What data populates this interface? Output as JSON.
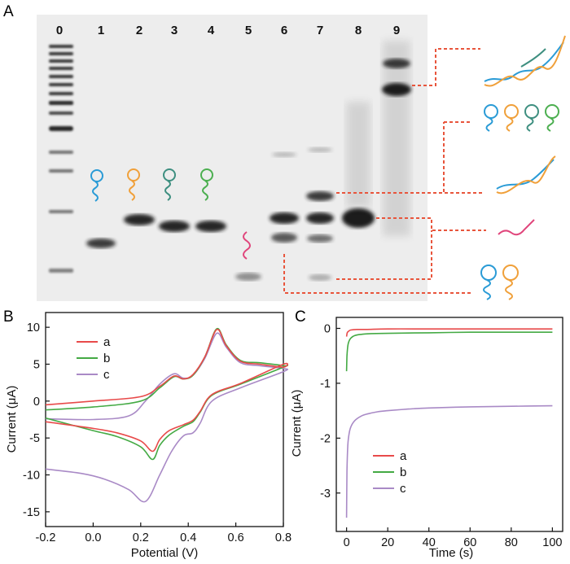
{
  "panels": {
    "A": {
      "letter": "A",
      "lane_numbers": [
        "0",
        "1",
        "2",
        "3",
        "4",
        "5",
        "6",
        "7",
        "8",
        "9"
      ],
      "colors": {
        "leader_line": "#e8553c",
        "blue": "#2a9bd6",
        "orange": "#f0a03a",
        "green": "#4caf50",
        "teal": "#3e8f80",
        "magenta": "#e0457b"
      }
    },
    "B": {
      "letter": "B",
      "chart_data": {
        "type": "line",
        "xlabel": "Potential (V)",
        "ylabel": "Current (μA)",
        "xlim": [
          -0.2,
          0.8
        ],
        "ylim": [
          -17,
          12
        ],
        "xticks": [
          "-0.2",
          "0.0",
          "0.2",
          "0.4",
          "0.6",
          "0.8"
        ],
        "yticks": [
          "10",
          "5",
          "0",
          "-5",
          "-10",
          "-15"
        ],
        "grid": false,
        "legend_position": "top-left",
        "series": [
          {
            "name": "a",
            "color": "#e84a4a",
            "upper": [
              [
                -0.2,
                -0.5
              ],
              [
                0.0,
                0.0
              ],
              [
                0.2,
                0.6
              ],
              [
                0.28,
                2.0
              ],
              [
                0.34,
                3.4
              ],
              [
                0.38,
                3.0
              ],
              [
                0.42,
                3.6
              ],
              [
                0.47,
                6.0
              ],
              [
                0.52,
                9.7
              ],
              [
                0.56,
                7.5
              ],
              [
                0.62,
                5.4
              ],
              [
                0.7,
                5.0
              ],
              [
                0.8,
                4.6
              ]
            ],
            "lower": [
              [
                0.8,
                5.0
              ],
              [
                0.62,
                2.4
              ],
              [
                0.5,
                0.9
              ],
              [
                0.45,
                -1.4
              ],
              [
                0.42,
                -2.6
              ],
              [
                0.38,
                -3.2
              ],
              [
                0.32,
                -4.0
              ],
              [
                0.28,
                -5.2
              ],
              [
                0.25,
                -6.8
              ],
              [
                0.2,
                -5.4
              ],
              [
                0.1,
                -4.3
              ],
              [
                0.0,
                -3.7
              ],
              [
                -0.2,
                -2.8
              ]
            ]
          },
          {
            "name": "b",
            "color": "#44aa44",
            "upper": [
              [
                -0.2,
                -1.2
              ],
              [
                0.0,
                -0.8
              ],
              [
                0.2,
                0.0
              ],
              [
                0.28,
                1.8
              ],
              [
                0.34,
                3.3
              ],
              [
                0.38,
                3.0
              ],
              [
                0.42,
                3.5
              ],
              [
                0.47,
                6.0
              ],
              [
                0.52,
                9.8
              ],
              [
                0.56,
                7.6
              ],
              [
                0.62,
                5.5
              ],
              [
                0.7,
                5.2
              ],
              [
                0.8,
                4.8
              ]
            ],
            "lower": [
              [
                0.8,
                4.6
              ],
              [
                0.62,
                2.3
              ],
              [
                0.5,
                0.8
              ],
              [
                0.45,
                -1.5
              ],
              [
                0.42,
                -2.8
              ],
              [
                0.38,
                -3.4
              ],
              [
                0.32,
                -4.6
              ],
              [
                0.28,
                -6.0
              ],
              [
                0.25,
                -7.9
              ],
              [
                0.2,
                -6.2
              ],
              [
                0.1,
                -4.8
              ],
              [
                0.0,
                -4.0
              ],
              [
                -0.2,
                -2.3
              ]
            ]
          },
          {
            "name": "c",
            "color": "#a98ac6",
            "upper": [
              [
                -0.2,
                -2.4
              ],
              [
                0.0,
                -2.5
              ],
              [
                0.15,
                -2.0
              ],
              [
                0.22,
                0.0
              ],
              [
                0.28,
                2.3
              ],
              [
                0.34,
                3.7
              ],
              [
                0.38,
                3.1
              ],
              [
                0.42,
                3.5
              ],
              [
                0.47,
                5.8
              ],
              [
                0.52,
                9.2
              ],
              [
                0.56,
                7.3
              ],
              [
                0.62,
                5.2
              ],
              [
                0.7,
                4.8
              ],
              [
                0.8,
                4.4
              ]
            ],
            "lower": [
              [
                0.8,
                4.0
              ],
              [
                0.62,
                1.8
              ],
              [
                0.5,
                0.0
              ],
              [
                0.45,
                -3.0
              ],
              [
                0.42,
                -4.3
              ],
              [
                0.38,
                -4.7
              ],
              [
                0.33,
                -6.8
              ],
              [
                0.28,
                -10.0
              ],
              [
                0.22,
                -13.6
              ],
              [
                0.15,
                -12.0
              ],
              [
                0.05,
                -10.6
              ],
              [
                -0.05,
                -9.8
              ],
              [
                -0.2,
                -9.2
              ]
            ]
          }
        ],
        "legend": [
          "a",
          "b",
          "c"
        ]
      }
    },
    "C": {
      "letter": "C",
      "chart_data": {
        "type": "line",
        "xlabel": "Time (s)",
        "ylabel": "Current (μA)",
        "xlim": [
          -5,
          105
        ],
        "ylim": [
          -3.7,
          0.2
        ],
        "xticks": [
          "0",
          "20",
          "40",
          "60",
          "80",
          "100"
        ],
        "yticks": [
          "0",
          "-1",
          "-2",
          "-3"
        ],
        "grid": false,
        "legend_position": "bottom-left",
        "series": [
          {
            "name": "a",
            "color": "#e84a4a",
            "t": [
              0,
              0.3,
              1,
              2,
              5,
              10,
              20,
              40,
              60,
              80,
              100
            ],
            "y": [
              -0.15,
              -0.08,
              -0.05,
              -0.03,
              -0.02,
              -0.02,
              -0.01,
              -0.01,
              -0.01,
              -0.01,
              -0.01
            ]
          },
          {
            "name": "b",
            "color": "#44aa44",
            "t": [
              0,
              0.2,
              0.5,
              1,
              2,
              4,
              7,
              10,
              20,
              40,
              60,
              80,
              100
            ],
            "y": [
              -0.78,
              -0.5,
              -0.35,
              -0.25,
              -0.18,
              -0.13,
              -0.11,
              -0.1,
              -0.09,
              -0.08,
              -0.07,
              -0.07,
              -0.07
            ]
          },
          {
            "name": "c",
            "color": "#a98ac6",
            "t": [
              0,
              0.2,
              0.5,
              1,
              2,
              4,
              7,
              10,
              15,
              20,
              30,
              40,
              60,
              80,
              100
            ],
            "y": [
              -3.45,
              -2.6,
              -2.2,
              -1.97,
              -1.8,
              -1.68,
              -1.6,
              -1.56,
              -1.52,
              -1.5,
              -1.47,
              -1.45,
              -1.43,
              -1.42,
              -1.41
            ]
          }
        ],
        "legend": [
          "a",
          "b",
          "c"
        ]
      }
    }
  }
}
